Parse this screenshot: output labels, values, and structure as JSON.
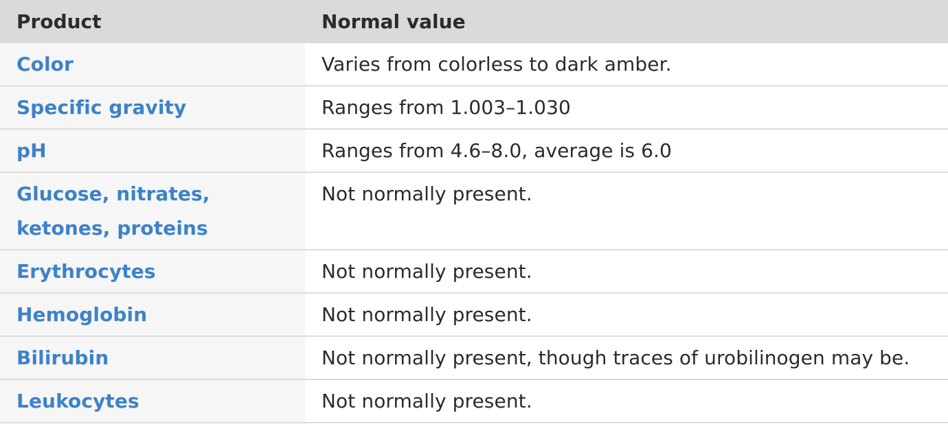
{
  "table": {
    "headers": {
      "product": "Product",
      "value": "Normal value"
    },
    "rows": [
      {
        "product": "Color",
        "value": "Varies from colorless to dark amber."
      },
      {
        "product": "Specific gravity",
        "value": "Ranges from 1.003–1.030"
      },
      {
        "product": "pH",
        "value": "Ranges from 4.6–8.0, average is 6.0"
      },
      {
        "product": "Glucose, nitrates, ketones, proteins",
        "value": "Not normally present."
      },
      {
        "product": "Erythrocytes",
        "value": "Not normally present."
      },
      {
        "product": "Hemoglobin",
        "value": "Not normally present."
      },
      {
        "product": "Bilirubin",
        "value": "Not normally present, though traces of urobilinogen may be."
      },
      {
        "product": "Leukocytes",
        "value": "Not normally present."
      }
    ]
  },
  "colors": {
    "header_bg": "#dadada",
    "product_text": "#3d82c9",
    "product_cell_bg": "#f6f6f6",
    "body_text": "#2b2b2b",
    "row_divider": "#dcdcdc"
  }
}
